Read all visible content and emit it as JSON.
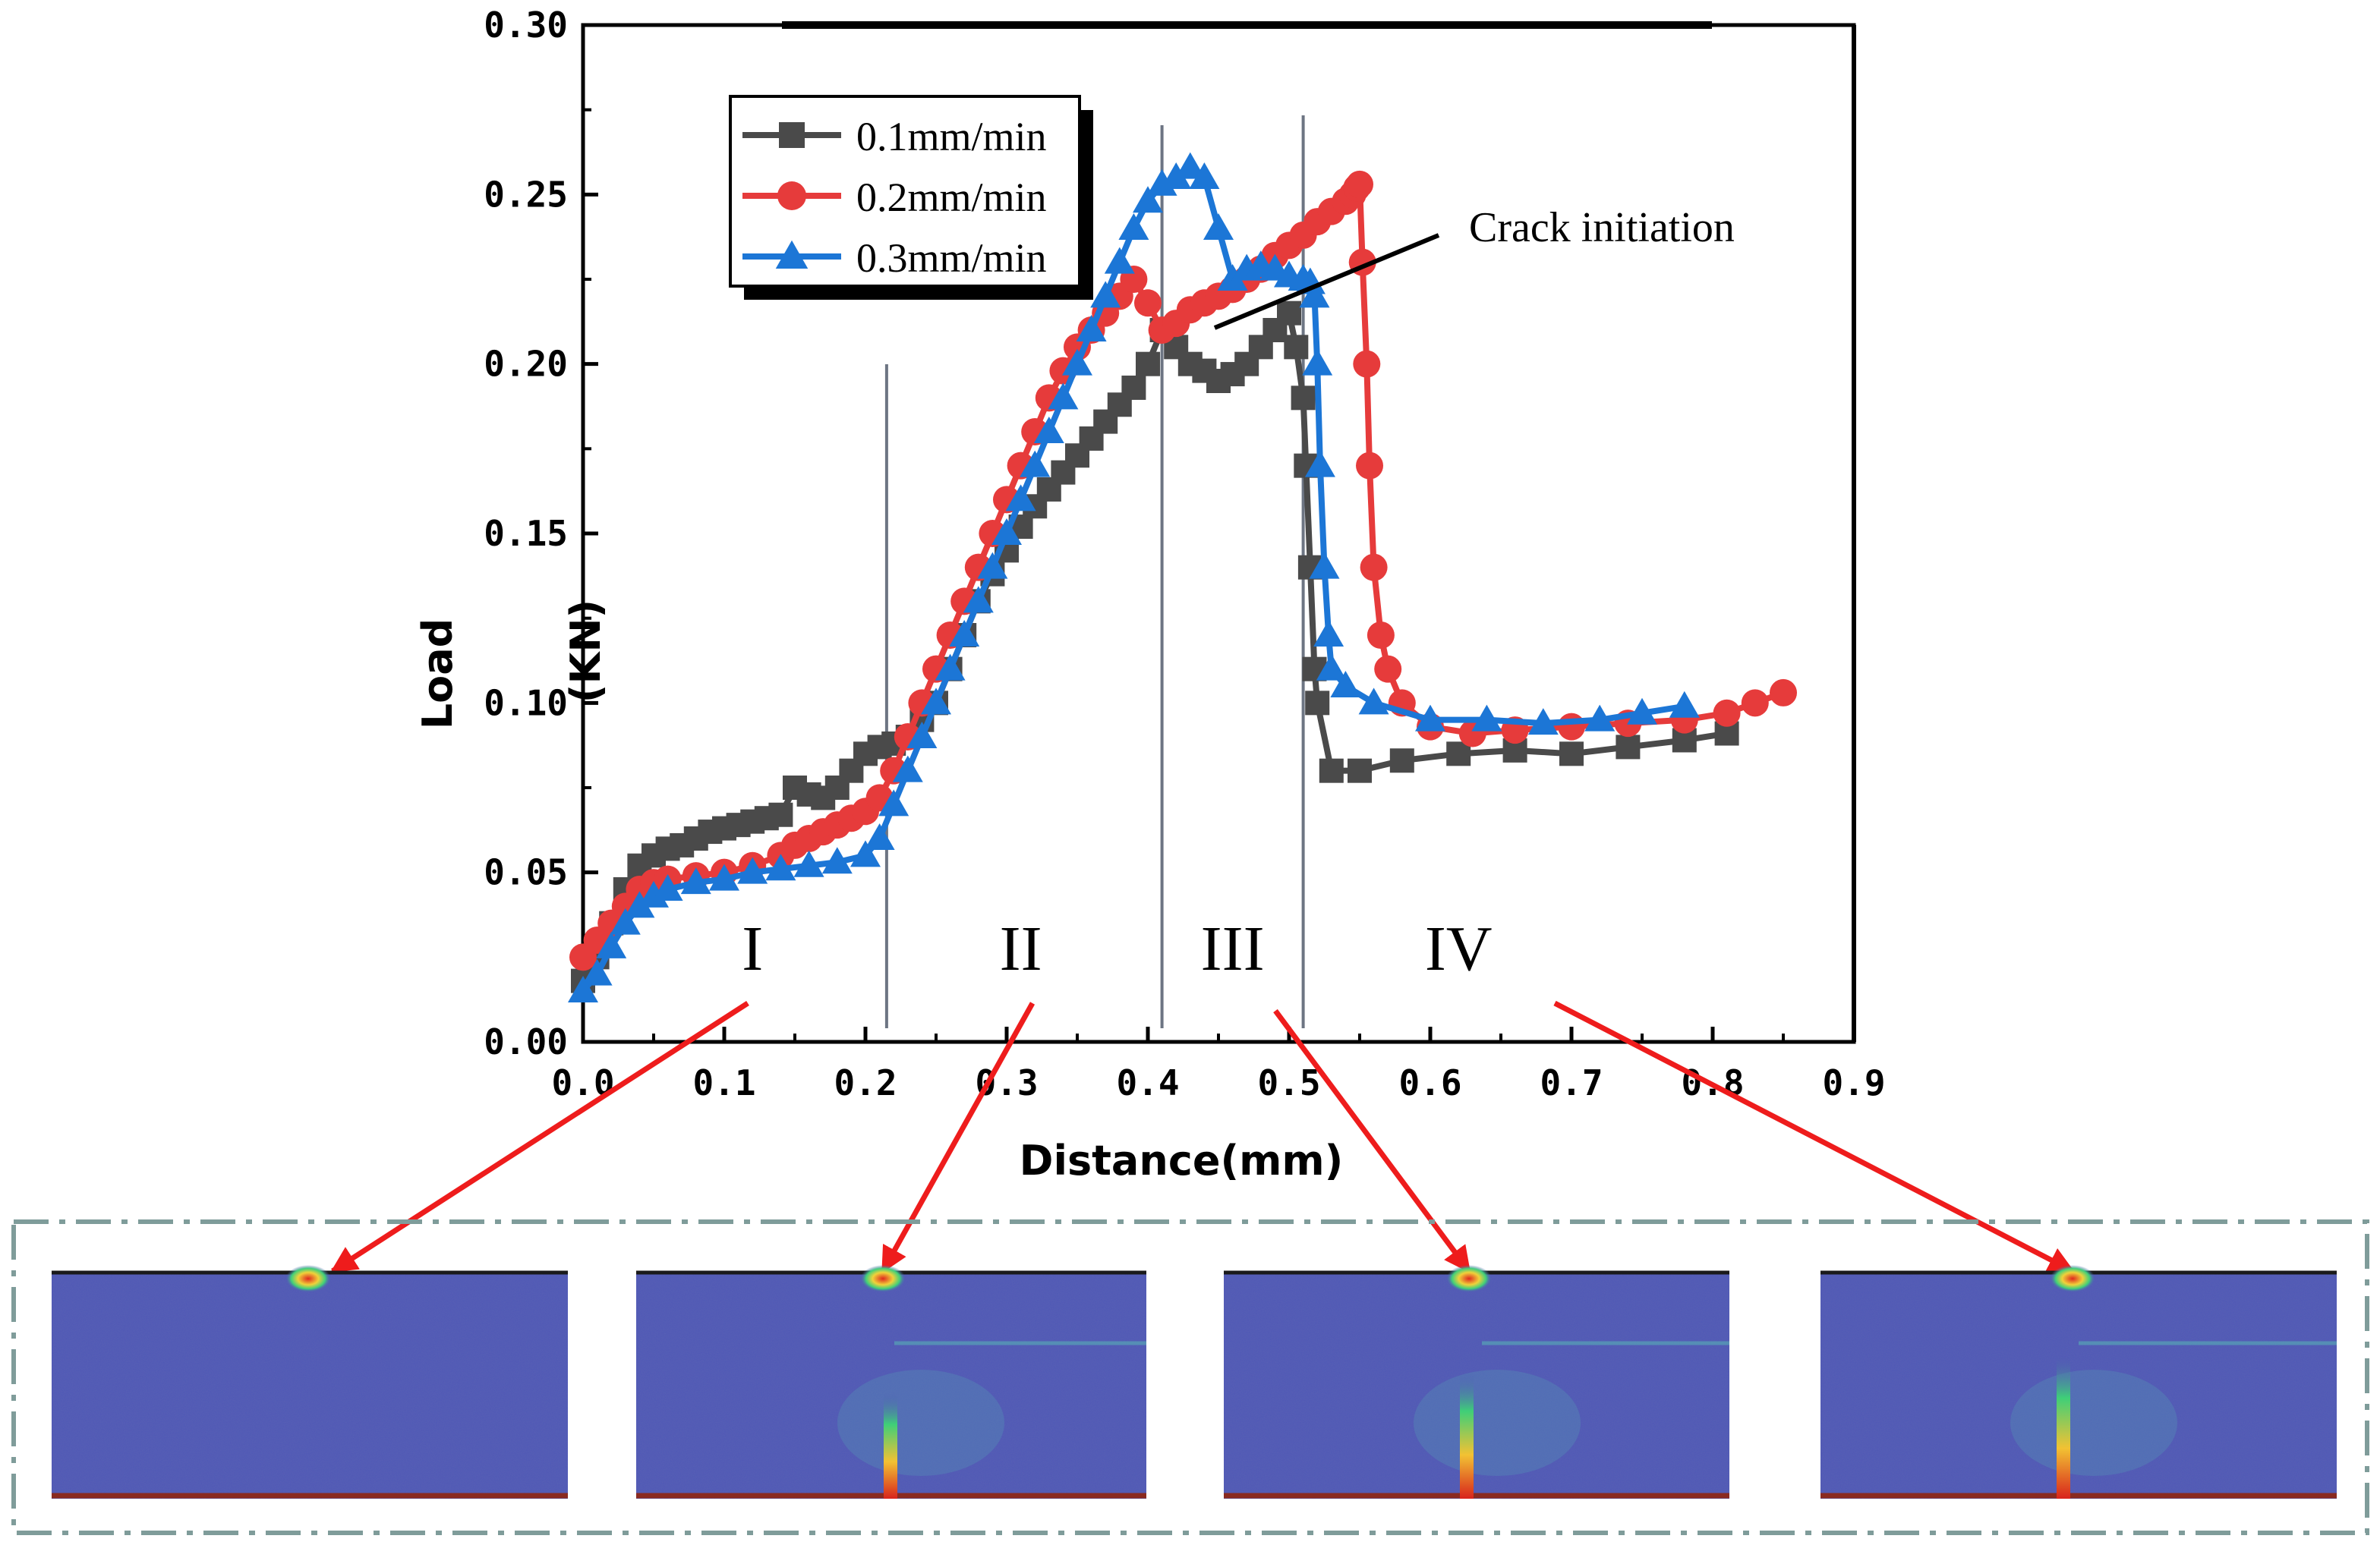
{
  "chart_data": {
    "type": "line",
    "title": "",
    "xlabel": "Distance(mm)",
    "ylabel_main": "Load",
    "ylabel_unit": "(KN)",
    "xlim": [
      0.0,
      0.9
    ],
    "ylim": [
      0.0,
      0.3
    ],
    "xticks": [
      "0.0",
      "0.1",
      "0.2",
      "0.3",
      "0.4",
      "0.5",
      "0.6",
      "0.7",
      "0.8",
      "0.9"
    ],
    "yticks": [
      "0.00",
      "0.05",
      "0.10",
      "0.15",
      "0.20",
      "0.25",
      "0.30"
    ],
    "legend_position": "top-left",
    "series": [
      {
        "name": "0.1mm/min",
        "color": "#4a4a4a",
        "marker": "square",
        "x": [
          0.0,
          0.01,
          0.02,
          0.03,
          0.04,
          0.05,
          0.06,
          0.07,
          0.08,
          0.09,
          0.1,
          0.11,
          0.12,
          0.13,
          0.14,
          0.15,
          0.16,
          0.17,
          0.18,
          0.19,
          0.2,
          0.21,
          0.22,
          0.23,
          0.24,
          0.25,
          0.26,
          0.27,
          0.28,
          0.29,
          0.3,
          0.31,
          0.32,
          0.33,
          0.34,
          0.35,
          0.36,
          0.37,
          0.38,
          0.39,
          0.4,
          0.41,
          0.42,
          0.43,
          0.44,
          0.45,
          0.46,
          0.47,
          0.48,
          0.49,
          0.5,
          0.505,
          0.51,
          0.512,
          0.515,
          0.518,
          0.52,
          0.53,
          0.55,
          0.58,
          0.62,
          0.66,
          0.7,
          0.74,
          0.78,
          0.81
        ],
        "y": [
          0.018,
          0.025,
          0.035,
          0.045,
          0.052,
          0.055,
          0.057,
          0.058,
          0.06,
          0.062,
          0.063,
          0.064,
          0.065,
          0.066,
          0.067,
          0.075,
          0.073,
          0.072,
          0.075,
          0.08,
          0.085,
          0.087,
          0.088,
          0.09,
          0.095,
          0.1,
          0.11,
          0.12,
          0.13,
          0.138,
          0.145,
          0.152,
          0.158,
          0.163,
          0.168,
          0.173,
          0.178,
          0.183,
          0.188,
          0.193,
          0.2,
          0.21,
          0.205,
          0.2,
          0.198,
          0.195,
          0.197,
          0.2,
          0.205,
          0.21,
          0.215,
          0.205,
          0.19,
          0.17,
          0.14,
          0.11,
          0.1,
          0.08,
          0.08,
          0.083,
          0.085,
          0.086,
          0.085,
          0.087,
          0.089,
          0.091
        ]
      },
      {
        "name": "0.2mm/min",
        "color": "#e63b3b",
        "marker": "circle",
        "x": [
          0.0,
          0.01,
          0.02,
          0.03,
          0.04,
          0.05,
          0.06,
          0.08,
          0.1,
          0.12,
          0.14,
          0.15,
          0.16,
          0.17,
          0.18,
          0.19,
          0.2,
          0.21,
          0.22,
          0.23,
          0.24,
          0.25,
          0.26,
          0.27,
          0.28,
          0.29,
          0.3,
          0.31,
          0.32,
          0.33,
          0.34,
          0.35,
          0.36,
          0.37,
          0.38,
          0.39,
          0.4,
          0.41,
          0.42,
          0.43,
          0.44,
          0.45,
          0.46,
          0.47,
          0.48,
          0.49,
          0.5,
          0.51,
          0.52,
          0.53,
          0.54,
          0.545,
          0.548,
          0.55,
          0.552,
          0.555,
          0.557,
          0.56,
          0.565,
          0.57,
          0.58,
          0.6,
          0.63,
          0.66,
          0.7,
          0.74,
          0.78,
          0.81,
          0.83,
          0.85
        ],
        "y": [
          0.025,
          0.03,
          0.035,
          0.04,
          0.045,
          0.047,
          0.048,
          0.049,
          0.05,
          0.052,
          0.055,
          0.058,
          0.06,
          0.062,
          0.064,
          0.066,
          0.068,
          0.072,
          0.08,
          0.09,
          0.1,
          0.11,
          0.12,
          0.13,
          0.14,
          0.15,
          0.16,
          0.17,
          0.18,
          0.19,
          0.198,
          0.205,
          0.21,
          0.215,
          0.22,
          0.225,
          0.218,
          0.21,
          0.212,
          0.216,
          0.218,
          0.22,
          0.222,
          0.225,
          0.228,
          0.232,
          0.235,
          0.238,
          0.242,
          0.245,
          0.248,
          0.25,
          0.252,
          0.253,
          0.23,
          0.2,
          0.17,
          0.14,
          0.12,
          0.11,
          0.1,
          0.093,
          0.091,
          0.092,
          0.093,
          0.094,
          0.095,
          0.097,
          0.1,
          0.103
        ]
      },
      {
        "name": "0.3mm/min",
        "color": "#1c76d6",
        "marker": "triangle",
        "x": [
          0.0,
          0.01,
          0.02,
          0.03,
          0.04,
          0.05,
          0.06,
          0.08,
          0.1,
          0.12,
          0.14,
          0.16,
          0.18,
          0.2,
          0.21,
          0.22,
          0.23,
          0.24,
          0.25,
          0.26,
          0.27,
          0.28,
          0.29,
          0.3,
          0.31,
          0.32,
          0.33,
          0.34,
          0.35,
          0.36,
          0.37,
          0.38,
          0.39,
          0.4,
          0.41,
          0.42,
          0.43,
          0.44,
          0.45,
          0.46,
          0.47,
          0.48,
          0.49,
          0.5,
          0.51,
          0.515,
          0.518,
          0.52,
          0.522,
          0.525,
          0.528,
          0.53,
          0.54,
          0.56,
          0.6,
          0.64,
          0.68,
          0.72,
          0.75,
          0.78
        ],
        "y": [
          0.015,
          0.02,
          0.028,
          0.035,
          0.04,
          0.043,
          0.045,
          0.047,
          0.048,
          0.05,
          0.051,
          0.052,
          0.053,
          0.055,
          0.06,
          0.07,
          0.08,
          0.09,
          0.1,
          0.11,
          0.12,
          0.13,
          0.14,
          0.15,
          0.16,
          0.17,
          0.18,
          0.19,
          0.2,
          0.21,
          0.22,
          0.23,
          0.24,
          0.248,
          0.253,
          0.255,
          0.258,
          0.255,
          0.24,
          0.225,
          0.228,
          0.229,
          0.228,
          0.226,
          0.225,
          0.224,
          0.22,
          0.2,
          0.17,
          0.14,
          0.12,
          0.11,
          0.105,
          0.1,
          0.095,
          0.095,
          0.094,
          0.095,
          0.097,
          0.099
        ]
      }
    ],
    "region_boundaries": [
      0.215,
      0.41,
      0.51
    ],
    "regions": [
      {
        "label": "I",
        "x": 0.12
      },
      {
        "label": "II",
        "x": 0.31
      },
      {
        "label": "III",
        "x": 0.46
      },
      {
        "label": "IV",
        "x": 0.62
      }
    ],
    "annotation": {
      "text": "Crack initiation",
      "x": 0.455,
      "y": 0.212
    }
  },
  "panels": [
    {
      "name": "stage-I-strain-map",
      "stage": "I"
    },
    {
      "name": "stage-II-strain-map",
      "stage": "II"
    },
    {
      "name": "stage-III-strain-map",
      "stage": "III"
    },
    {
      "name": "stage-IV-strain-map",
      "stage": "IV"
    }
  ],
  "colors": {
    "arrow": "#ee1c1c",
    "panel_blue": "#4e57b6",
    "frame": "#7f9c9a",
    "boundary_line": "#6d7583"
  }
}
